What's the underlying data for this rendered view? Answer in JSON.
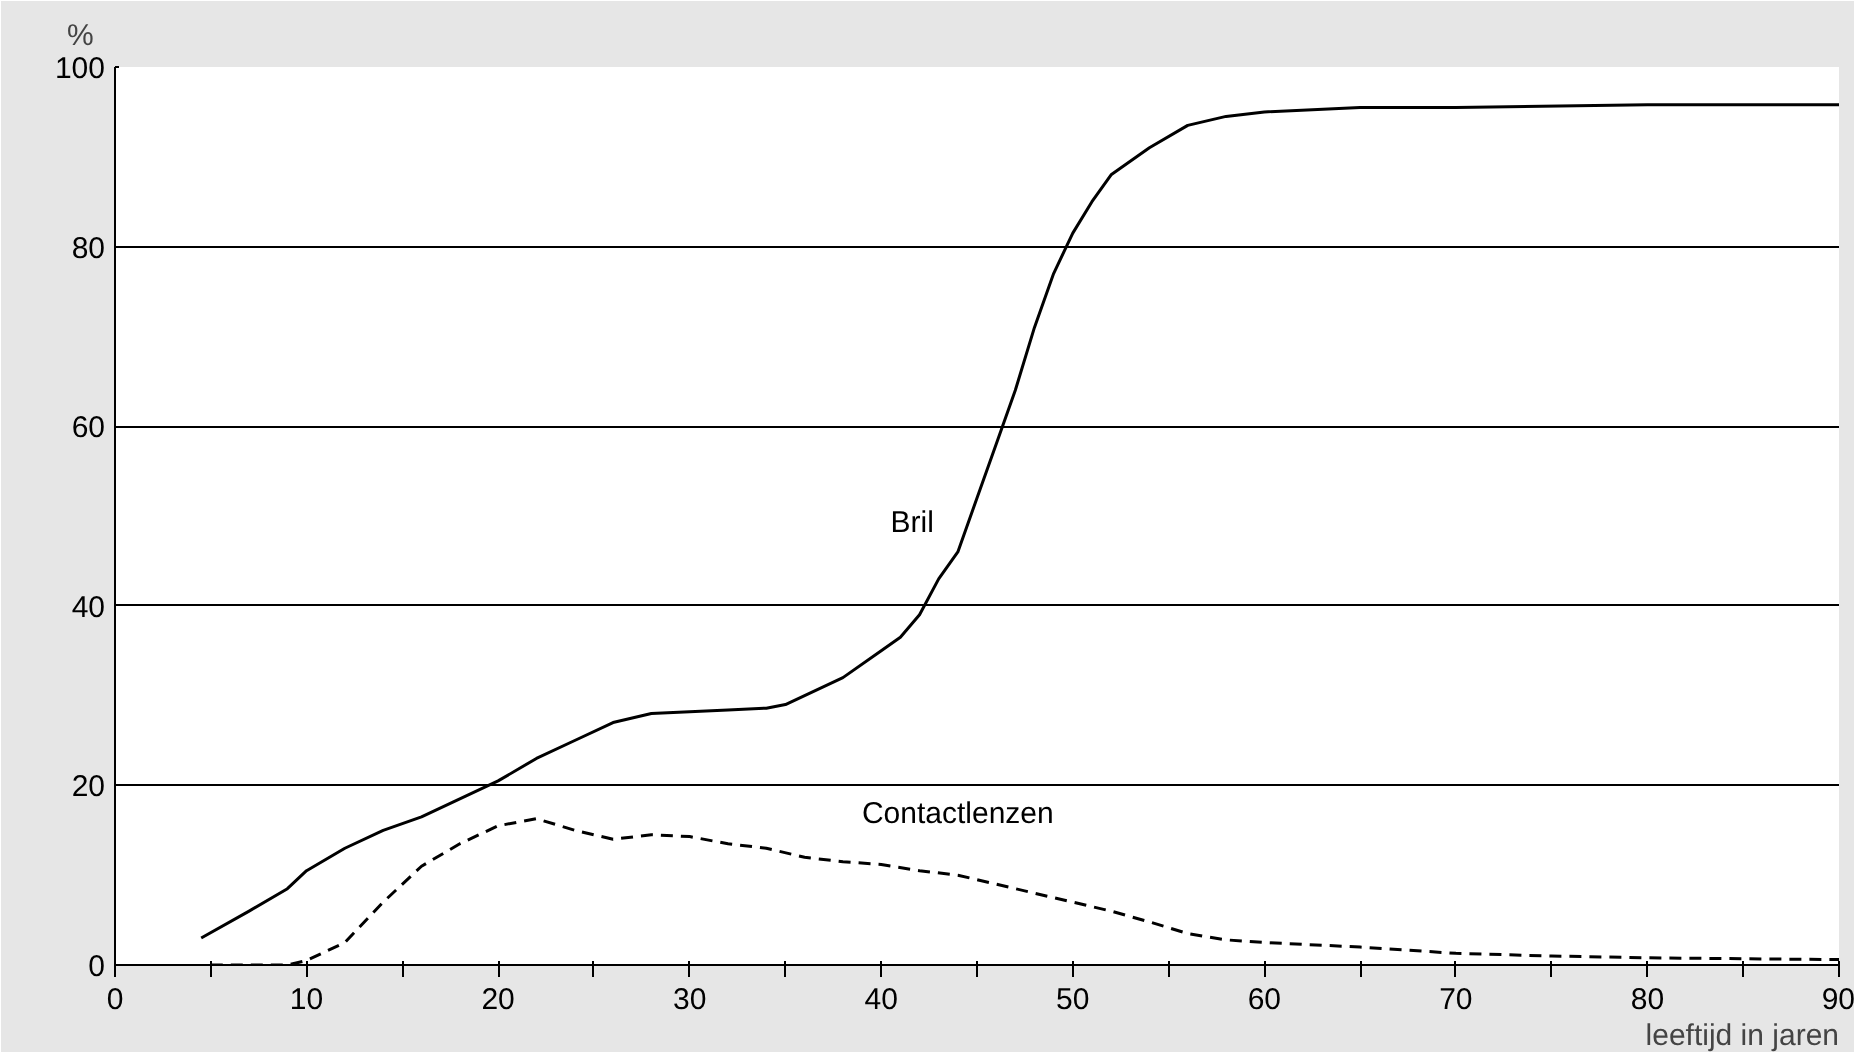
{
  "chart_data": {
    "type": "line",
    "xlabel": "leeftijd in jaren",
    "ylabel": "%",
    "xlim": [
      0,
      90
    ],
    "ylim": [
      0,
      100
    ],
    "xticks": [
      0,
      {
        "value": 5,
        "label": null
      },
      10,
      {
        "value": 15,
        "label": null
      },
      20,
      {
        "value": 25,
        "label": null
      },
      30,
      {
        "value": 35,
        "label": null
      },
      40,
      {
        "value": 45,
        "label": null
      },
      50,
      {
        "value": 55,
        "label": null
      },
      60,
      {
        "value": 65,
        "label": null
      },
      70,
      {
        "value": 75,
        "label": null
      },
      80,
      {
        "value": 85,
        "label": null
      },
      90
    ],
    "yticks": [
      0,
      20,
      40,
      60,
      80,
      100
    ],
    "grid": "y",
    "marker": "none",
    "series": [
      {
        "name": "Bril",
        "color": "#000000",
        "line_style": "solid",
        "x": [
          4.5,
          7,
          9,
          10,
          12,
          14,
          16,
          18,
          20,
          22,
          24,
          26,
          28,
          30,
          32,
          34,
          35,
          36,
          38,
          40,
          41,
          42,
          43,
          44,
          45,
          46,
          47,
          48,
          49,
          50,
          51,
          52,
          54,
          56,
          58,
          60,
          65,
          70,
          80,
          90
        ],
        "values": [
          3,
          6,
          8.5,
          10.5,
          13,
          15,
          16.5,
          18.5,
          20.5,
          23,
          25,
          27,
          28,
          28.2,
          28.4,
          28.6,
          29,
          30,
          32,
          35,
          36.5,
          39,
          43,
          46,
          52,
          58,
          64,
          71,
          77,
          81.5,
          85,
          88,
          91,
          93.5,
          94.5,
          95,
          95.5,
          95.5,
          95.8,
          95.8
        ]
      },
      {
        "name": "Contactlenzen",
        "color": "#000000",
        "line_style": "dashed",
        "x": [
          5,
          9,
          10,
          12,
          14,
          16,
          18,
          20,
          22,
          24,
          26,
          28,
          30,
          32,
          34,
          36,
          38,
          40,
          42,
          44,
          46,
          48,
          50,
          52,
          54,
          56,
          58,
          60,
          65,
          70,
          75,
          80,
          90
        ],
        "values": [
          0,
          0,
          0.5,
          2.5,
          7,
          11,
          13.5,
          15.5,
          16.3,
          15,
          14,
          14.5,
          14.3,
          13.5,
          13,
          12,
          11.5,
          11.2,
          10.5,
          10,
          9,
          8,
          7,
          6,
          4.8,
          3.5,
          2.8,
          2.5,
          2,
          1.3,
          1,
          0.8,
          0.6
        ]
      }
    ]
  }
}
